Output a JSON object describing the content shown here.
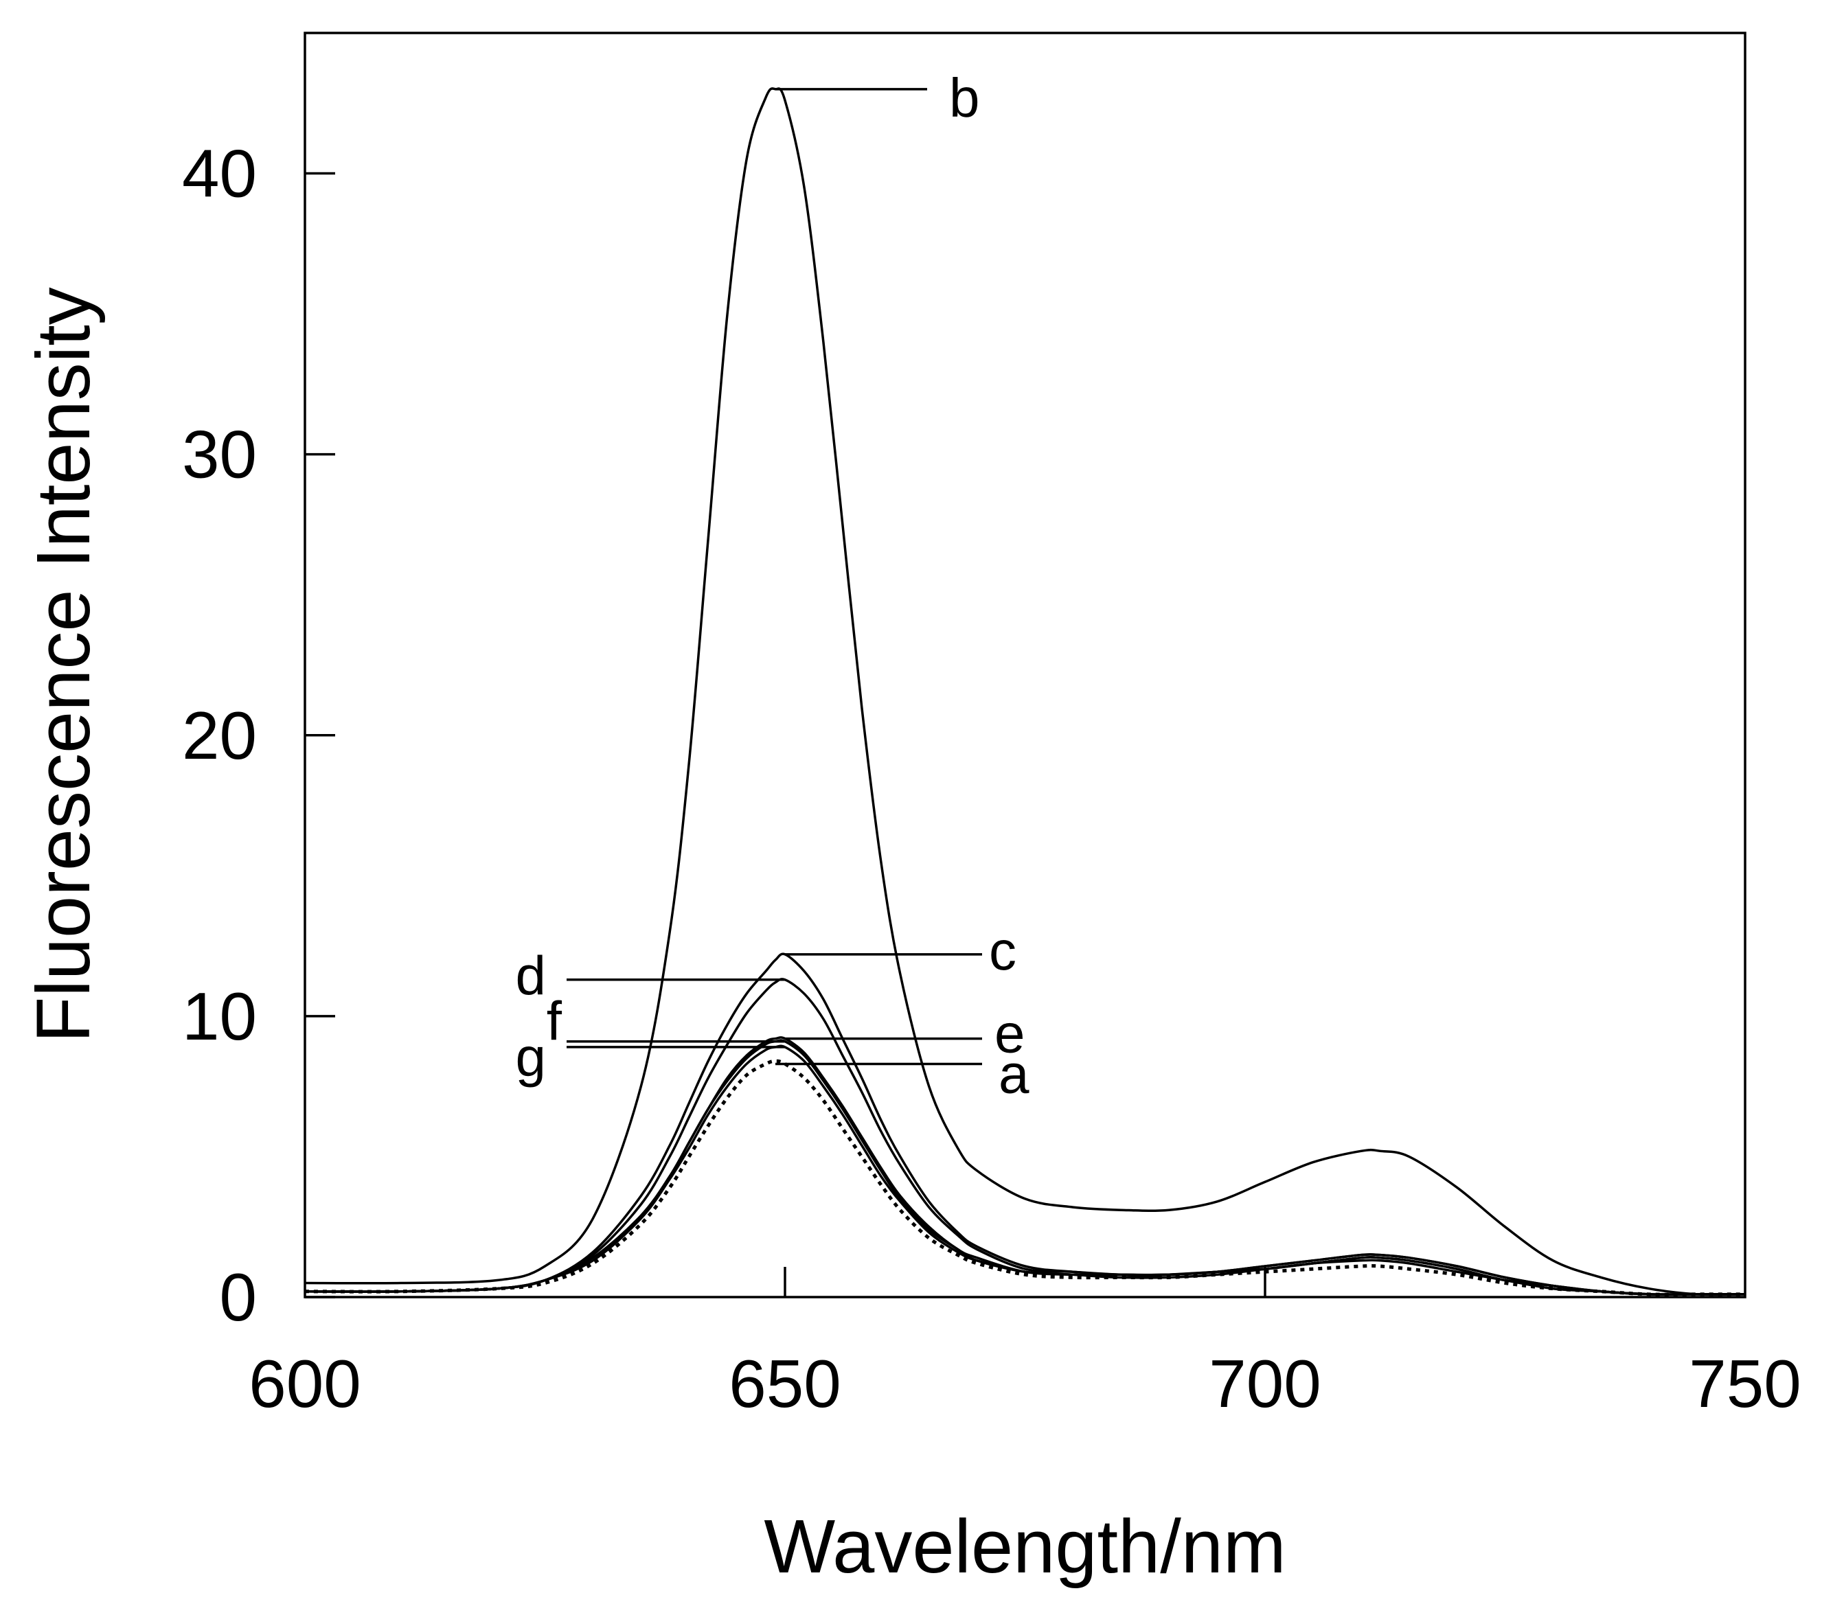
{
  "chart_data": {
    "type": "line",
    "title": "",
    "xlabel": "Wavelength/nm",
    "ylabel": "Fluorescence Intensity",
    "xlim": [
      600,
      750
    ],
    "ylim": [
      0,
      45
    ],
    "x_ticks": [
      600,
      650,
      700,
      750
    ],
    "y_ticks": [
      0,
      10,
      20,
      30,
      40
    ],
    "grid": false,
    "x": [
      600,
      610,
      620,
      625,
      630,
      635,
      638,
      640,
      642,
      644,
      646,
      648,
      649,
      650,
      652,
      654,
      656,
      658,
      660,
      662,
      665,
      668,
      670,
      675,
      680,
      685,
      690,
      695,
      700,
      705,
      710,
      712,
      715,
      720,
      725,
      730,
      735,
      740,
      745,
      750
    ],
    "series": [
      {
        "name": "a",
        "style": "dotted",
        "values": [
          0.2,
          0.2,
          0.3,
          0.5,
          1.2,
          2.6,
          3.9,
          5.0,
          6.1,
          7.1,
          7.9,
          8.3,
          8.4,
          8.3,
          7.8,
          7.0,
          6.0,
          5.0,
          4.0,
          3.1,
          2.1,
          1.5,
          1.2,
          0.8,
          0.7,
          0.7,
          0.7,
          0.8,
          0.9,
          1.0,
          1.1,
          1.1,
          1.0,
          0.8,
          0.5,
          0.3,
          0.2,
          0.1,
          0.1,
          0.1
        ]
      },
      {
        "name": "b",
        "style": "solid",
        "values": [
          0.5,
          0.5,
          0.6,
          1.1,
          2.8,
          7.5,
          13.0,
          19.0,
          27.0,
          35.0,
          40.5,
          42.7,
          43.0,
          42.6,
          39.5,
          34.0,
          27.5,
          21.0,
          15.5,
          11.5,
          7.5,
          5.3,
          4.5,
          3.5,
          3.2,
          3.1,
          3.1,
          3.4,
          4.1,
          4.8,
          5.2,
          5.2,
          5.0,
          3.9,
          2.5,
          1.3,
          0.7,
          0.3,
          0.1,
          0.1
        ]
      },
      {
        "name": "c",
        "style": "solid",
        "values": [
          0.2,
          0.2,
          0.3,
          0.6,
          1.6,
          3.6,
          5.4,
          6.9,
          8.4,
          9.7,
          10.8,
          11.6,
          12.0,
          12.2,
          11.6,
          10.6,
          9.2,
          7.8,
          6.3,
          5.0,
          3.4,
          2.3,
          1.8,
          1.1,
          0.9,
          0.8,
          0.8,
          0.9,
          1.1,
          1.3,
          1.5,
          1.5,
          1.4,
          1.1,
          0.7,
          0.4,
          0.2,
          0.1,
          0.1,
          0.1
        ]
      },
      {
        "name": "d",
        "style": "solid",
        "values": [
          0.2,
          0.2,
          0.3,
          0.6,
          1.5,
          3.3,
          5.0,
          6.4,
          7.8,
          9.0,
          10.1,
          10.9,
          11.2,
          11.3,
          10.8,
          9.9,
          8.6,
          7.3,
          5.9,
          4.7,
          3.2,
          2.2,
          1.7,
          1.0,
          0.9,
          0.8,
          0.8,
          0.9,
          1.0,
          1.2,
          1.4,
          1.4,
          1.3,
          1.0,
          0.6,
          0.4,
          0.2,
          0.1,
          0.1,
          0.1
        ]
      },
      {
        "name": "e",
        "style": "solid",
        "values": [
          0.2,
          0.2,
          0.3,
          0.6,
          1.4,
          2.9,
          4.3,
          5.5,
          6.7,
          7.8,
          8.6,
          9.1,
          9.2,
          9.2,
          8.7,
          7.8,
          6.8,
          5.7,
          4.6,
          3.6,
          2.5,
          1.7,
          1.4,
          0.9,
          0.8,
          0.8,
          0.8,
          0.9,
          1.1,
          1.3,
          1.5,
          1.5,
          1.4,
          1.1,
          0.7,
          0.4,
          0.2,
          0.1,
          0.1,
          0.1
        ]
      },
      {
        "name": "f",
        "style": "solid",
        "values": [
          0.2,
          0.2,
          0.3,
          0.6,
          1.4,
          2.9,
          4.3,
          5.5,
          6.7,
          7.7,
          8.5,
          9.0,
          9.1,
          9.1,
          8.6,
          7.7,
          6.7,
          5.6,
          4.5,
          3.5,
          2.4,
          1.7,
          1.3,
          0.9,
          0.8,
          0.7,
          0.8,
          0.9,
          1.0,
          1.2,
          1.4,
          1.4,
          1.3,
          1.0,
          0.6,
          0.4,
          0.2,
          0.1,
          0.1,
          0.1
        ]
      },
      {
        "name": "g",
        "style": "solid",
        "values": [
          0.2,
          0.2,
          0.3,
          0.6,
          1.3,
          2.8,
          4.2,
          5.3,
          6.5,
          7.5,
          8.3,
          8.8,
          8.9,
          8.9,
          8.4,
          7.5,
          6.5,
          5.4,
          4.3,
          3.4,
          2.3,
          1.6,
          1.3,
          0.9,
          0.8,
          0.7,
          0.7,
          0.8,
          1.0,
          1.2,
          1.3,
          1.3,
          1.2,
          0.9,
          0.6,
          0.3,
          0.2,
          0.1,
          0.1,
          0.1
        ]
      }
    ],
    "annotations": [
      {
        "label": "b",
        "series": "b",
        "at_x": 649,
        "at_y": 43.0,
        "side": "right"
      },
      {
        "label": "c",
        "series": "c",
        "at_x": 650,
        "at_y": 12.2,
        "side": "right"
      },
      {
        "label": "d",
        "series": "d",
        "at_x": 650,
        "at_y": 11.3,
        "side": "left"
      },
      {
        "label": "e",
        "series": "e",
        "at_x": 650,
        "at_y": 9.2,
        "side": "right"
      },
      {
        "label": "f",
        "series": "f",
        "at_x": 650,
        "at_y": 9.1,
        "side": "left"
      },
      {
        "label": "g",
        "series": "g",
        "at_x": 650,
        "at_y": 8.9,
        "side": "left"
      },
      {
        "label": "a",
        "series": "a",
        "at_x": 649,
        "at_y": 8.3,
        "side": "right"
      }
    ]
  }
}
